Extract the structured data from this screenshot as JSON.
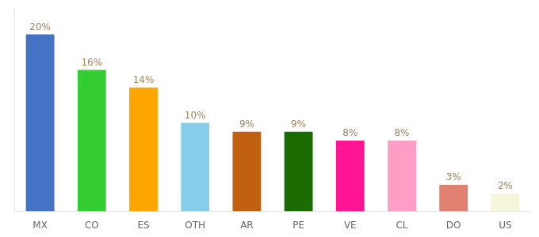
{
  "chart_data": {
    "type": "bar",
    "categories": [
      "MX",
      "CO",
      "ES",
      "OTH",
      "AR",
      "PE",
      "VE",
      "CL",
      "DO",
      "US"
    ],
    "values": [
      20,
      16,
      14,
      10,
      9,
      9,
      8,
      8,
      3,
      2
    ],
    "value_labels": [
      "20%",
      "16%",
      "14%",
      "10%",
      "9%",
      "9%",
      "8%",
      "8%",
      "3%",
      "2%"
    ],
    "colors": [
      "#4472C4",
      "#33CC33",
      "#FFA500",
      "#87CEEB",
      "#C06010",
      "#1A6B00",
      "#FF1493",
      "#FF9EC4",
      "#E08070",
      "#F5F5DC"
    ],
    "ylim": [
      0,
      23
    ],
    "grid": false,
    "data_labels": true,
    "tick_labels": "x"
  }
}
